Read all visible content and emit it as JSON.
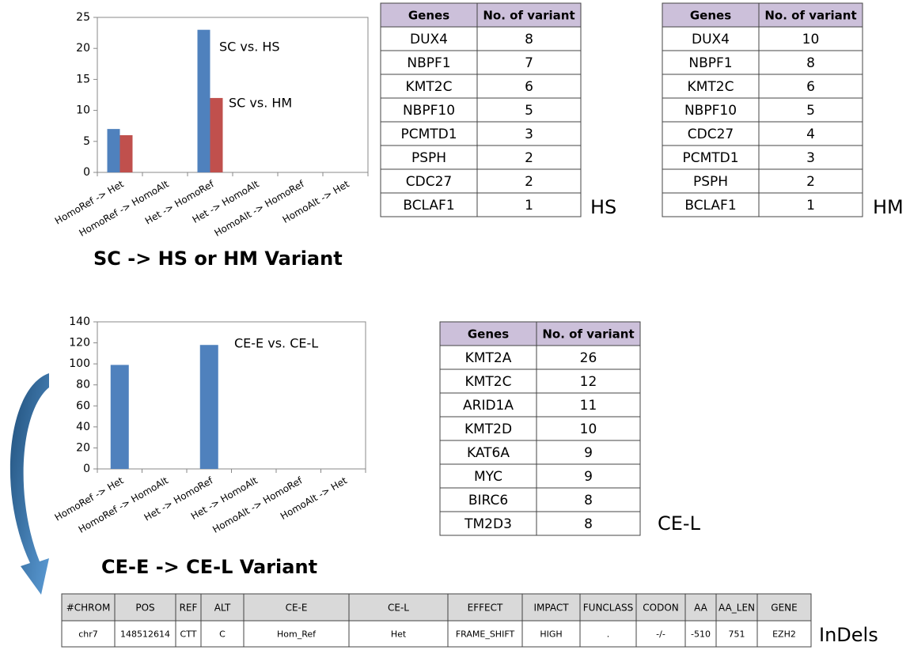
{
  "chart_data": [
    {
      "type": "bar",
      "title": "SC -> HS or HM Variant",
      "categories": [
        "HomoRef -> Het",
        "HomoRef -> HomoAlt",
        "Het -> HomoRef",
        "Het -> HomoAlt",
        "HomoAlt -> HomoRef",
        "HomoAlt -> Het"
      ],
      "series": [
        {
          "name": "SC vs. HS",
          "color": "#4f81bd",
          "values": [
            7,
            0,
            23,
            0,
            0,
            0
          ]
        },
        {
          "name": "SC vs. HM",
          "color": "#c0504d",
          "values": [
            6,
            0,
            12,
            0,
            0,
            0
          ]
        }
      ],
      "ylim": [
        0,
        25
      ],
      "yticks": [
        0,
        5,
        10,
        15,
        20,
        25
      ]
    },
    {
      "type": "bar",
      "title": "CE-E -> CE-L Variant",
      "categories": [
        "HomoRef -> Het",
        "HomoRef -> HomoAlt",
        "Het -> HomoRef",
        "Het -> HomoAlt",
        "HomoAlt -> HomoRef",
        "HomoAlt -> Het"
      ],
      "series": [
        {
          "name": "CE-E vs. CE-L",
          "color": "#4f81bd",
          "values": [
            99,
            0,
            118,
            0,
            0,
            0
          ]
        }
      ],
      "ylim": [
        0,
        140
      ],
      "yticks": [
        0,
        20,
        40,
        60,
        80,
        100,
        120,
        140
      ]
    }
  ],
  "tables": [
    {
      "label": "HS",
      "header": [
        "Genes",
        "No. of variant"
      ],
      "rows": [
        [
          "DUX4",
          8
        ],
        [
          "NBPF1",
          7
        ],
        [
          "KMT2C",
          6
        ],
        [
          "NBPF10",
          5
        ],
        [
          "PCMTD1",
          3
        ],
        [
          "PSPH",
          2
        ],
        [
          "CDC27",
          2
        ],
        [
          "BCLAF1",
          1
        ]
      ]
    },
    {
      "label": "HM",
      "header": [
        "Genes",
        "No. of variant"
      ],
      "rows": [
        [
          "DUX4",
          10
        ],
        [
          "NBPF1",
          8
        ],
        [
          "KMT2C",
          6
        ],
        [
          "NBPF10",
          5
        ],
        [
          "CDC27",
          4
        ],
        [
          "PCMTD1",
          3
        ],
        [
          "PSPH",
          2
        ],
        [
          "BCLAF1",
          1
        ]
      ]
    },
    {
      "label": "CE-L",
      "header": [
        "Genes",
        "No. of variant"
      ],
      "rows": [
        [
          "KMT2A",
          26
        ],
        [
          "KMT2C",
          12
        ],
        [
          "ARID1A",
          11
        ],
        [
          "KMT2D",
          10
        ],
        [
          "KAT6A",
          9
        ],
        [
          "MYC",
          9
        ],
        [
          "BIRC6",
          8
        ],
        [
          "TM2D3",
          8
        ]
      ]
    }
  ],
  "indels": {
    "label": "InDels",
    "header": [
      "#CHROM",
      "POS",
      "REF",
      "ALT",
      "CE-E",
      "CE-L",
      "EFFECT",
      "IMPACT",
      "FUNCLASS",
      "CODON",
      "AA",
      "AA_LEN",
      "GENE"
    ],
    "rows": [
      [
        "chr7",
        "148512614",
        "CTT",
        "C",
        "Hom_Ref",
        "Het",
        "FRAME_SHIFT",
        "HIGH",
        ".",
        "-/-",
        "-510",
        "751",
        "EZH2"
      ]
    ]
  }
}
